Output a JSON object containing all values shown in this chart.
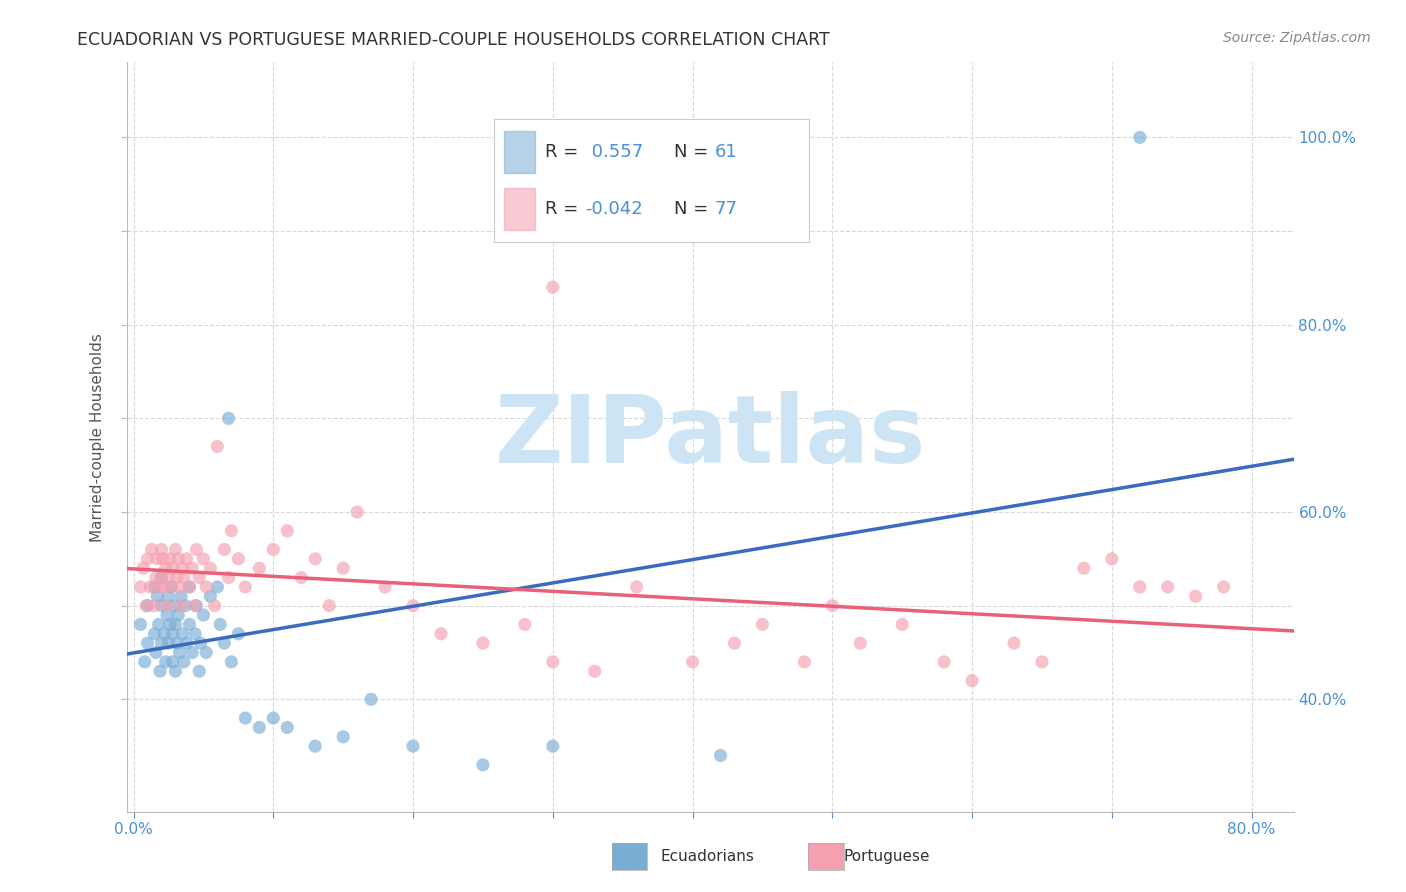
{
  "title": "ECUADORIAN VS PORTUGUESE MARRIED-COUPLE HOUSEHOLDS CORRELATION CHART",
  "source": "Source: ZipAtlas.com",
  "ylabel_label": "Married-couple Households",
  "xlim": [
    -0.005,
    0.83
  ],
  "ylim": [
    0.28,
    1.08
  ],
  "background_color": "#ffffff",
  "grid_color": "#d8d8d8",
  "watermark_text": "ZIPatlas",
  "watermark_color": "#cce4f4",
  "blue_color": "#7aadd4",
  "pink_color": "#f4a0b0",
  "blue_line_color": "#3a6bbf",
  "pink_line_color": "#e8607a",
  "blue_dash_color": "#aac8e0",
  "axis_label_color": "#4a90d9",
  "title_color": "#333333",
  "source_color": "#888888",
  "ecu_x": [
    0.005,
    0.008,
    0.01,
    0.01,
    0.015,
    0.015,
    0.016,
    0.017,
    0.018,
    0.019,
    0.02,
    0.02,
    0.02,
    0.022,
    0.023,
    0.024,
    0.025,
    0.025,
    0.026,
    0.027,
    0.028,
    0.028,
    0.029,
    0.03,
    0.03,
    0.031,
    0.032,
    0.033,
    0.034,
    0.035,
    0.036,
    0.037,
    0.038,
    0.04,
    0.04,
    0.042,
    0.044,
    0.045,
    0.047,
    0.048,
    0.05,
    0.052,
    0.055,
    0.06,
    0.062,
    0.065,
    0.068,
    0.07,
    0.075,
    0.08,
    0.09,
    0.1,
    0.11,
    0.13,
    0.15,
    0.17,
    0.2,
    0.25,
    0.3,
    0.42,
    0.72
  ],
  "ecu_y": [
    0.48,
    0.44,
    0.5,
    0.46,
    0.47,
    0.52,
    0.45,
    0.51,
    0.48,
    0.43,
    0.46,
    0.5,
    0.53,
    0.47,
    0.44,
    0.49,
    0.51,
    0.46,
    0.48,
    0.52,
    0.44,
    0.47,
    0.5,
    0.48,
    0.43,
    0.46,
    0.49,
    0.45,
    0.51,
    0.47,
    0.44,
    0.5,
    0.46,
    0.48,
    0.52,
    0.45,
    0.47,
    0.5,
    0.43,
    0.46,
    0.49,
    0.45,
    0.51,
    0.52,
    0.48,
    0.46,
    0.7,
    0.44,
    0.47,
    0.38,
    0.37,
    0.38,
    0.37,
    0.35,
    0.36,
    0.4,
    0.35,
    0.33,
    0.35,
    0.34,
    1.0
  ],
  "por_x": [
    0.005,
    0.007,
    0.009,
    0.01,
    0.012,
    0.013,
    0.015,
    0.016,
    0.017,
    0.018,
    0.02,
    0.02,
    0.021,
    0.022,
    0.023,
    0.024,
    0.025,
    0.026,
    0.027,
    0.028,
    0.03,
    0.031,
    0.032,
    0.033,
    0.034,
    0.035,
    0.036,
    0.038,
    0.04,
    0.042,
    0.044,
    0.045,
    0.047,
    0.05,
    0.052,
    0.055,
    0.058,
    0.06,
    0.065,
    0.068,
    0.07,
    0.075,
    0.08,
    0.09,
    0.1,
    0.11,
    0.12,
    0.13,
    0.14,
    0.15,
    0.16,
    0.18,
    0.2,
    0.22,
    0.25,
    0.28,
    0.3,
    0.33,
    0.36,
    0.4,
    0.43,
    0.45,
    0.48,
    0.5,
    0.52,
    0.55,
    0.58,
    0.6,
    0.63,
    0.65,
    0.68,
    0.7,
    0.72,
    0.74,
    0.76,
    0.78,
    0.3
  ],
  "por_y": [
    0.52,
    0.54,
    0.5,
    0.55,
    0.52,
    0.56,
    0.5,
    0.53,
    0.55,
    0.52,
    0.56,
    0.53,
    0.55,
    0.52,
    0.54,
    0.5,
    0.53,
    0.55,
    0.52,
    0.54,
    0.56,
    0.53,
    0.55,
    0.52,
    0.5,
    0.54,
    0.53,
    0.55,
    0.52,
    0.54,
    0.5,
    0.56,
    0.53,
    0.55,
    0.52,
    0.54,
    0.5,
    0.67,
    0.56,
    0.53,
    0.58,
    0.55,
    0.52,
    0.54,
    0.56,
    0.58,
    0.53,
    0.55,
    0.5,
    0.54,
    0.6,
    0.52,
    0.5,
    0.47,
    0.46,
    0.48,
    0.44,
    0.43,
    0.52,
    0.44,
    0.46,
    0.48,
    0.44,
    0.5,
    0.46,
    0.48,
    0.44,
    0.42,
    0.46,
    0.44,
    0.54,
    0.55,
    0.52,
    0.52,
    0.51,
    0.52,
    0.84
  ],
  "ecu_R": 0.557,
  "ecu_N": 61,
  "por_R": -0.042,
  "por_N": 77,
  "x_tick_positions": [
    0.0,
    0.1,
    0.2,
    0.3,
    0.4,
    0.5,
    0.6,
    0.7,
    0.8
  ],
  "x_tick_labels": [
    "0.0%",
    "",
    "",
    "",
    "",
    "",
    "",
    "",
    "80.0%"
  ],
  "y_tick_positions": [
    0.4,
    0.5,
    0.6,
    0.7,
    0.8,
    0.9,
    1.0
  ],
  "y_tick_labels": [
    "40.0%",
    "",
    "60.0%",
    "",
    "80.0%",
    "",
    "100.0%"
  ]
}
